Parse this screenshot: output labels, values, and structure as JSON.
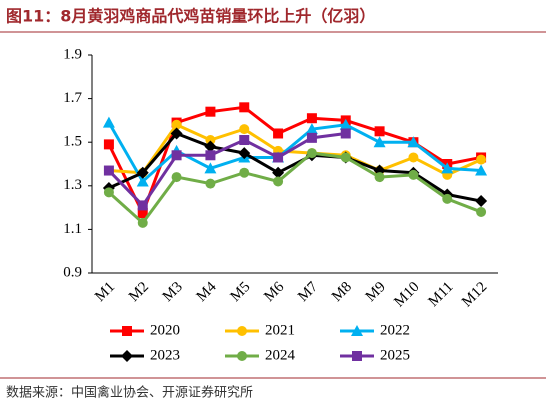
{
  "chart_data": {
    "type": "line",
    "title": "图11：8月黄羽鸡商品代鸡苗销量环比上升（亿羽）",
    "source": "数据来源：中国禽业协会、开源证券研究所",
    "categories": [
      "M1",
      "M2",
      "M3",
      "M4",
      "M5",
      "M6",
      "M7",
      "M8",
      "M9",
      "M10",
      "M11",
      "M12"
    ],
    "series": [
      {
        "name": "2020",
        "color": "#ff0000",
        "marker": "square",
        "values": [
          1.49,
          1.175,
          1.59,
          1.64,
          1.66,
          1.54,
          1.61,
          1.6,
          1.55,
          1.5,
          1.4,
          1.43
        ]
      },
      {
        "name": "2021",
        "color": "#ffc000",
        "marker": "circle",
        "values": [
          1.37,
          1.36,
          1.58,
          1.51,
          1.56,
          1.46,
          1.45,
          1.44,
          1.37,
          1.43,
          1.35,
          1.42
        ]
      },
      {
        "name": "2022",
        "color": "#00b0f0",
        "marker": "triangle",
        "values": [
          1.59,
          1.32,
          1.46,
          1.38,
          1.43,
          1.43,
          1.56,
          1.58,
          1.5,
          1.5,
          1.38,
          1.37
        ]
      },
      {
        "name": "2023",
        "color": "#000000",
        "marker": "diamond",
        "values": [
          1.29,
          1.36,
          1.54,
          1.48,
          1.45,
          1.36,
          1.44,
          1.43,
          1.37,
          1.36,
          1.26,
          1.23
        ]
      },
      {
        "name": "2024",
        "color": "#70ad47",
        "marker": "circle",
        "values": [
          1.27,
          1.13,
          1.34,
          1.31,
          1.36,
          1.32,
          1.45,
          1.43,
          1.34,
          1.35,
          1.24,
          1.18
        ]
      },
      {
        "name": "2025",
        "color": "#7030a0",
        "marker": "square",
        "values": [
          1.37,
          1.21,
          1.44,
          1.44,
          1.51,
          1.43,
          1.52,
          1.54,
          null,
          null,
          null,
          null
        ]
      }
    ],
    "ylim": [
      0.9,
      1.9
    ],
    "yticks": [
      0.9,
      1.1,
      1.3,
      1.5,
      1.7,
      1.9
    ]
  }
}
